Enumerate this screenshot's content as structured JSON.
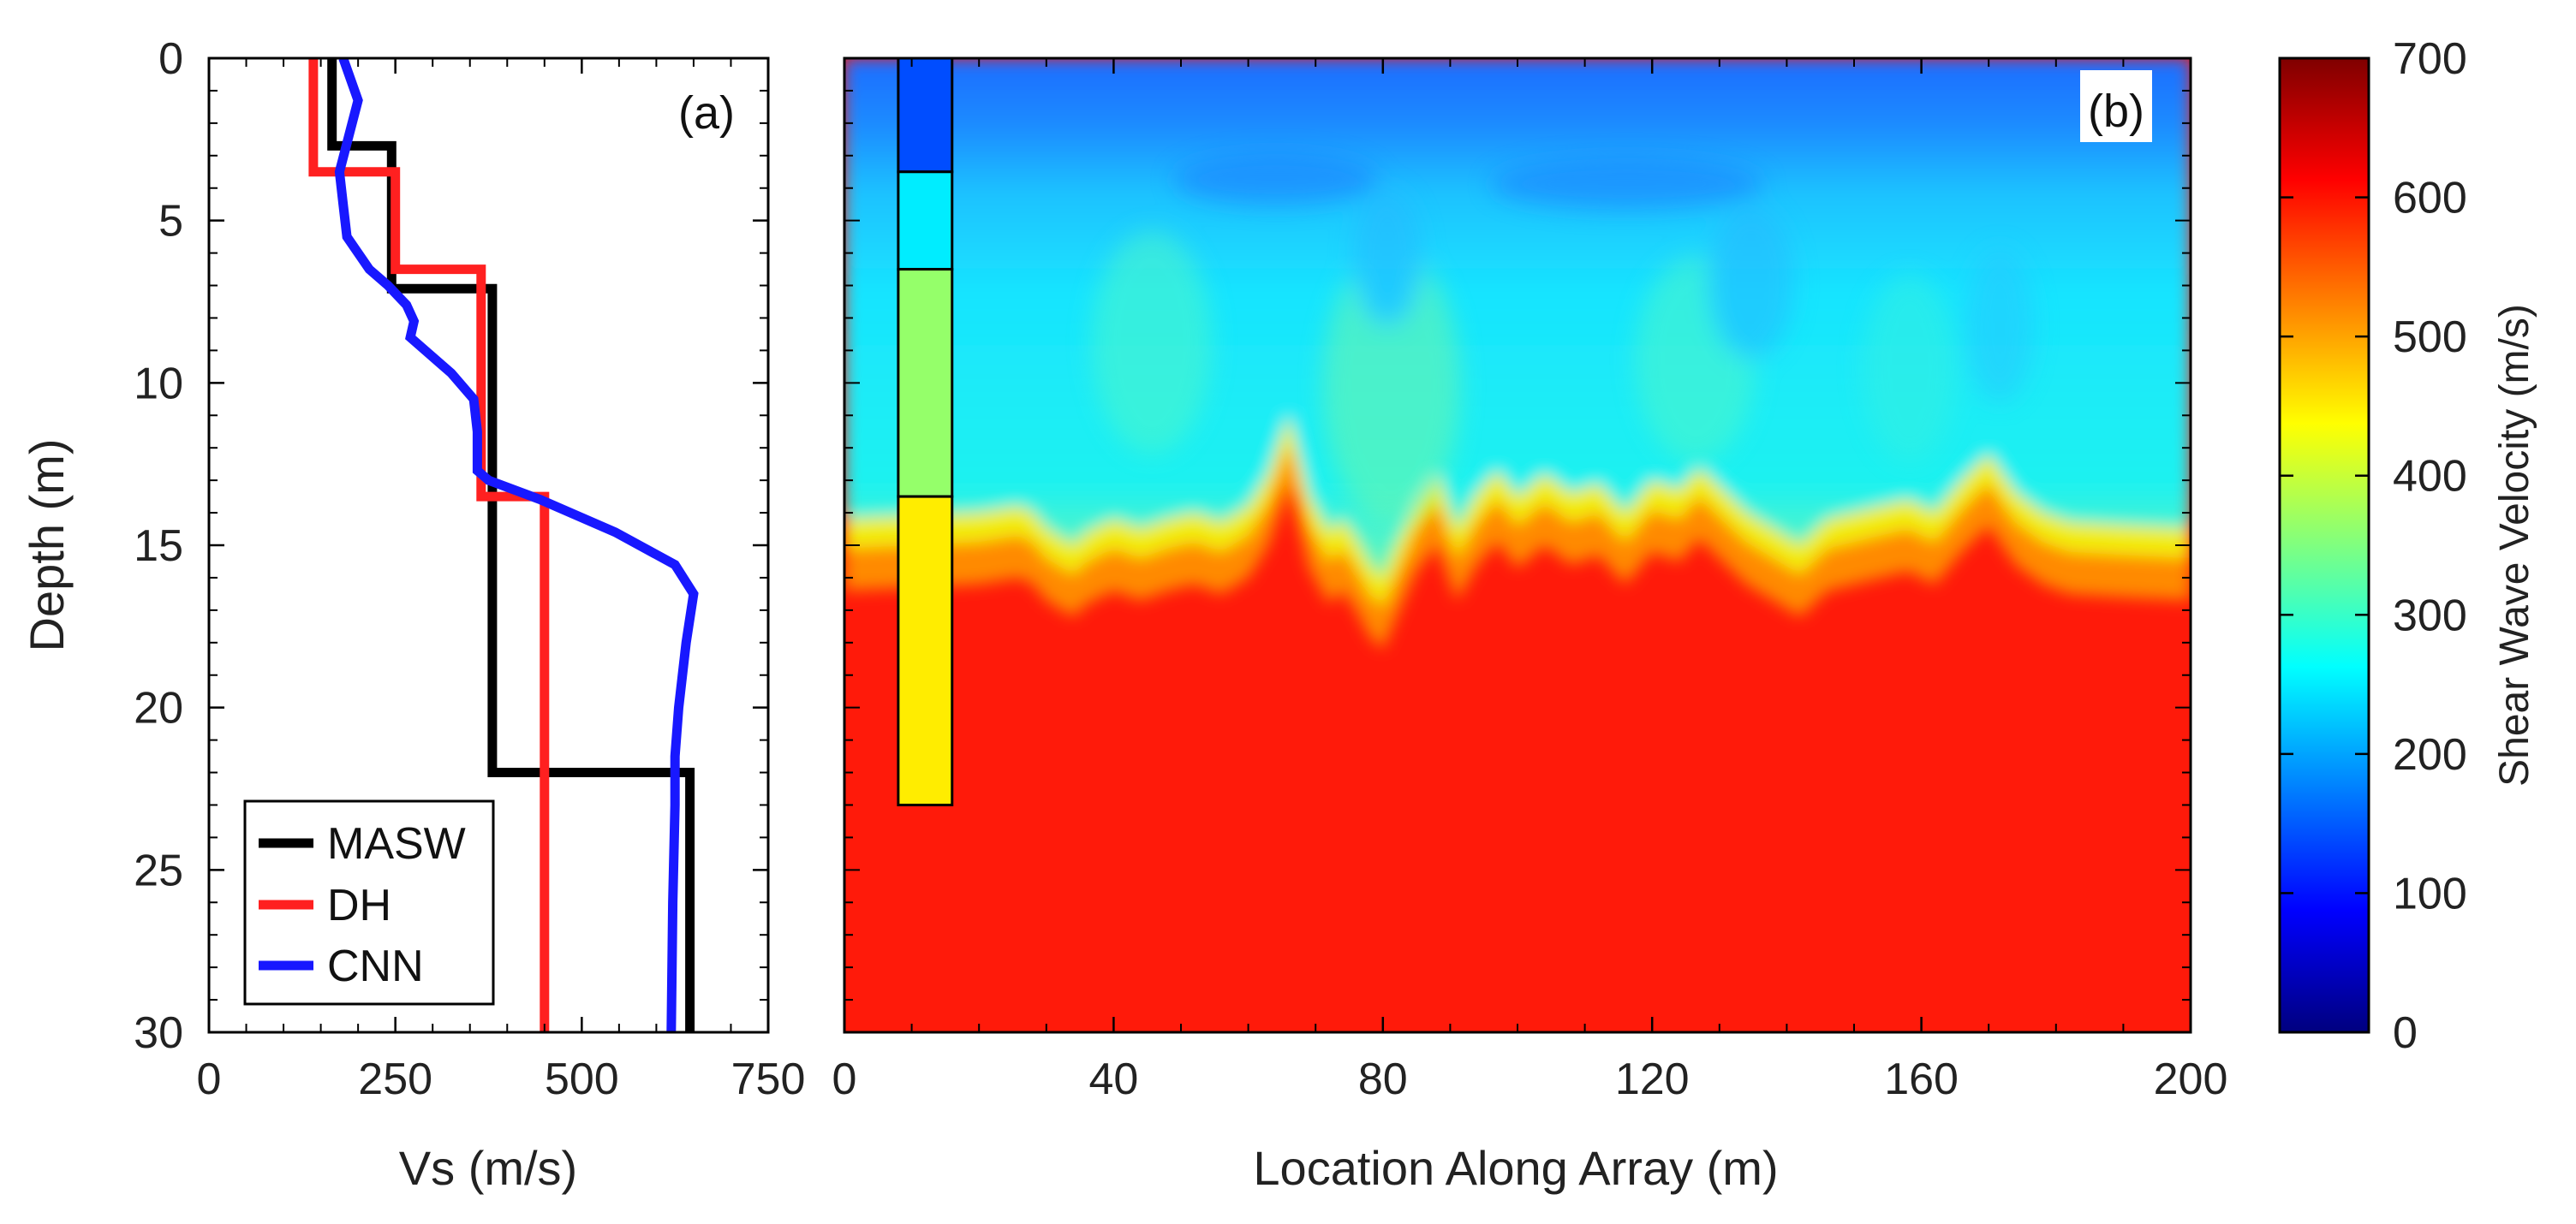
{
  "chart_data": [
    {
      "panel": "(a)",
      "type": "line",
      "xlabel": "Vs (m/s)",
      "ylabel": "Depth (m)",
      "xlim": [
        0,
        750
      ],
      "ylim": [
        0,
        30
      ],
      "y_inverted": true,
      "xticks": [
        0,
        250,
        500,
        750
      ],
      "yticks": [
        0,
        5,
        10,
        15,
        20,
        25,
        30
      ],
      "legend_position": "bottom-left",
      "grid": false,
      "series": [
        {
          "name": "MASW",
          "color": "#000000",
          "x": [
            165,
            165,
            245,
            245,
            380,
            380,
            645,
            645
          ],
          "y": [
            0,
            2.7,
            2.7,
            7.1,
            7.1,
            22.0,
            22.0,
            30
          ]
        },
        {
          "name": "DH",
          "color": "#ff2020",
          "x": [
            140,
            140,
            250,
            250,
            365,
            365,
            450,
            450
          ],
          "y": [
            0,
            3.5,
            3.5,
            6.5,
            6.5,
            13.5,
            13.5,
            30
          ]
        },
        {
          "name": "CNN",
          "color": "#1818ff",
          "x": [
            180,
            200,
            175,
            180,
            185,
            215,
            240,
            265,
            275,
            270,
            290,
            325,
            355,
            360,
            360,
            375,
            445,
            545,
            625,
            650,
            640,
            630,
            625,
            625,
            622,
            620
          ],
          "y": [
            0,
            1.3,
            3.5,
            4.5,
            5.5,
            6.5,
            7.0,
            7.6,
            8.1,
            8.6,
            9.0,
            9.7,
            10.5,
            11.5,
            12.7,
            13.0,
            13.6,
            14.6,
            15.6,
            16.5,
            18.0,
            20.0,
            21.5,
            23.0,
            26.0,
            30.0
          ]
        }
      ]
    },
    {
      "panel": "(b)",
      "type": "heatmap",
      "xlabel": "Location Along Array (m)",
      "ylabel": "",
      "xlim": [
        0,
        200
      ],
      "ylim": [
        0,
        30
      ],
      "y_inverted": true,
      "xticks": [
        0,
        40,
        80,
        120,
        160,
        200
      ],
      "colorbar": {
        "title": "Shear Wave Velocity (m/s)",
        "min": 0,
        "max": 700,
        "ticks": [
          0,
          100,
          200,
          300,
          400,
          500,
          600,
          700
        ],
        "colormap": "jet"
      },
      "interface_depth_by_location": {
        "x": [
          0,
          20,
          26,
          28,
          30,
          34,
          36,
          40,
          44,
          48,
          52,
          56,
          60,
          63,
          66,
          69,
          72,
          74,
          76,
          78,
          80,
          82,
          85,
          88,
          91,
          94,
          97,
          100,
          104,
          108,
          112,
          116,
          120,
          124,
          127,
          130,
          134,
          138,
          142,
          146,
          150,
          154,
          158,
          162,
          166,
          170,
          174,
          178,
          182,
          190,
          200
        ],
        "depth": [
          14.2,
          14.0,
          13.8,
          14.0,
          14.5,
          15.0,
          14.6,
          14.2,
          14.5,
          14.2,
          14.0,
          14.3,
          13.8,
          12.8,
          11.0,
          13.5,
          14.6,
          14.2,
          14.8,
          15.6,
          16.0,
          15.0,
          13.6,
          12.8,
          14.5,
          13.4,
          12.7,
          13.5,
          12.8,
          13.4,
          13.1,
          14.0,
          13.0,
          13.3,
          12.6,
          13.2,
          14.0,
          14.5,
          15.0,
          14.2,
          14.0,
          13.8,
          13.6,
          14.0,
          13.0,
          12.2,
          13.4,
          14.0,
          14.3,
          14.4,
          14.5
        ]
      },
      "downhole_column": {
        "x_range": [
          8,
          16
        ],
        "layers": [
          {
            "top": 0,
            "bottom": 3.5,
            "vs": 140
          },
          {
            "top": 3.5,
            "bottom": 6.5,
            "vs": 250
          },
          {
            "top": 6.5,
            "bottom": 13.5,
            "vs": 365
          },
          {
            "top": 13.5,
            "bottom": 23.0,
            "vs": 450
          }
        ]
      }
    }
  ]
}
